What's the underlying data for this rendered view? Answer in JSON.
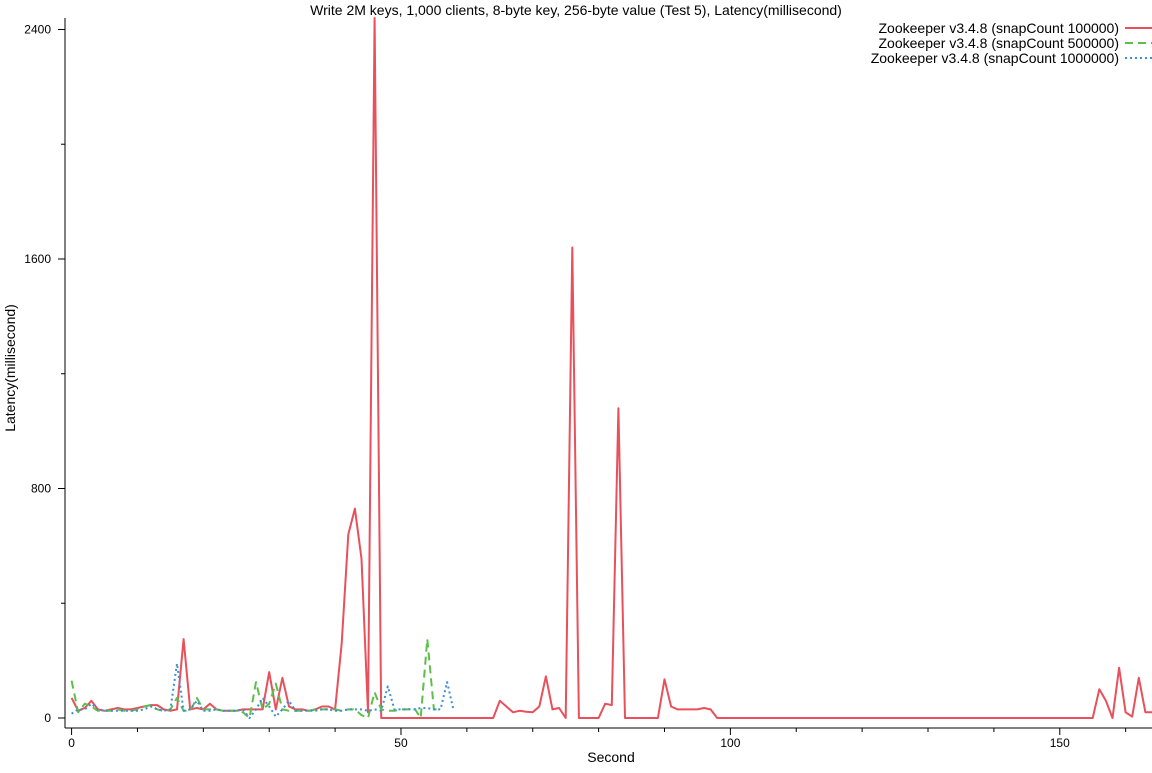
{
  "chart_data": {
    "type": "line",
    "title": "Write 2M keys, 1,000 clients, 8-byte key, 256-byte value (Test 5), Latency(millisecond)",
    "xlabel": "Second",
    "ylabel": "Latency(millisecond)",
    "xlim": [
      -1,
      164
    ],
    "ylim": [
      0,
      2440
    ],
    "x_major_ticks": [
      0,
      50,
      100,
      150
    ],
    "x_minor_ticks": [
      10,
      20,
      30,
      40,
      60,
      70,
      80,
      90,
      110,
      120,
      130,
      140,
      160
    ],
    "y_major_ticks": [
      0,
      800,
      1600,
      2400
    ],
    "y_minor_ticks": [
      400,
      1200,
      2000
    ],
    "grid": false,
    "legend_position": "top-right",
    "series": [
      {
        "name": "Zookeeper v3.4.8 (snapCount 100000)",
        "color": "#e8505b",
        "dash": "solid",
        "x": [
          0,
          1,
          2,
          3,
          4,
          5,
          6,
          7,
          8,
          9,
          10,
          11,
          12,
          13,
          14,
          15,
          16,
          17,
          18,
          19,
          20,
          21,
          22,
          23,
          24,
          25,
          26,
          27,
          28,
          29,
          30,
          31,
          32,
          33,
          34,
          35,
          36,
          37,
          38,
          39,
          40,
          41,
          42,
          43,
          44,
          45,
          46,
          47,
          48,
          49,
          50,
          51,
          52,
          53,
          54,
          55,
          56,
          57,
          58,
          59,
          60,
          61,
          62,
          63,
          64,
          65,
          66,
          67,
          68,
          69,
          70,
          71,
          72,
          73,
          74,
          75,
          76,
          77,
          78,
          79,
          80,
          81,
          82,
          83,
          84,
          85,
          86,
          87,
          88,
          89,
          90,
          91,
          92,
          93,
          94,
          95,
          96,
          97,
          98,
          100,
          110,
          120,
          130,
          140,
          150,
          155,
          156,
          157,
          158,
          159,
          160,
          161,
          162,
          163,
          164
        ],
        "values": [
          70,
          25,
          35,
          60,
          30,
          25,
          30,
          35,
          30,
          30,
          35,
          40,
          45,
          45,
          30,
          25,
          30,
          275,
          30,
          35,
          30,
          50,
          30,
          25,
          25,
          25,
          30,
          30,
          30,
          30,
          160,
          30,
          140,
          40,
          30,
          30,
          25,
          30,
          40,
          40,
          30,
          260,
          640,
          730,
          555,
          20,
          2440,
          0,
          0,
          0,
          0,
          0,
          0,
          0,
          0,
          0,
          0,
          0,
          0,
          0,
          0,
          0,
          0,
          0,
          0,
          60,
          40,
          20,
          25,
          22,
          20,
          40,
          145,
          30,
          35,
          0,
          1640,
          0,
          0,
          0,
          0,
          50,
          45,
          1080,
          0,
          0,
          0,
          0,
          0,
          0,
          135,
          40,
          30,
          30,
          30,
          30,
          35,
          30,
          0,
          0,
          0,
          0,
          0,
          0,
          0,
          0,
          100,
          60,
          0,
          175,
          20,
          5,
          140,
          20,
          20
        ]
      },
      {
        "name": "Zookeeper v3.4.8 (snapCount 500000)",
        "color": "#5cbf4a",
        "dash": "dashed",
        "x": [
          0,
          1,
          2,
          3,
          4,
          5,
          6,
          7,
          8,
          9,
          10,
          11,
          12,
          13,
          14,
          15,
          16,
          17,
          18,
          19,
          20,
          21,
          22,
          23,
          24,
          25,
          26,
          27,
          28,
          29,
          30,
          31,
          32,
          33,
          34,
          35,
          36,
          37,
          38,
          39,
          40,
          41,
          42,
          43,
          44,
          45,
          46,
          47,
          48,
          49,
          50,
          51,
          52,
          53,
          54,
          55,
          56
        ],
        "values": [
          130,
          20,
          50,
          40,
          25,
          25,
          25,
          30,
          25,
          25,
          30,
          40,
          45,
          30,
          25,
          30,
          70,
          25,
          25,
          70,
          30,
          30,
          30,
          25,
          25,
          25,
          20,
          0,
          125,
          30,
          50,
          120,
          30,
          25,
          25,
          25,
          25,
          30,
          30,
          30,
          30,
          25,
          30,
          30,
          10,
          0,
          90,
          30,
          25,
          25,
          30,
          30,
          35,
          0,
          275,
          30,
          30
        ]
      },
      {
        "name": "Zookeeper v3.4.8 (snapCount 1000000)",
        "color": "#3a8fd6",
        "dash": "dotted",
        "x": [
          0,
          1,
          2,
          3,
          4,
          5,
          6,
          7,
          8,
          9,
          10,
          11,
          12,
          13,
          14,
          15,
          16,
          17,
          18,
          19,
          20,
          21,
          22,
          23,
          24,
          25,
          26,
          27,
          28,
          29,
          30,
          31,
          32,
          33,
          34,
          35,
          36,
          37,
          38,
          39,
          40,
          41,
          42,
          43,
          44,
          45,
          46,
          47,
          48,
          49,
          50,
          51,
          52,
          53,
          54,
          55,
          56,
          57,
          58
        ],
        "values": [
          15,
          30,
          30,
          50,
          30,
          25,
          25,
          25,
          25,
          25,
          25,
          30,
          40,
          30,
          25,
          30,
          190,
          25,
          30,
          60,
          25,
          25,
          30,
          25,
          25,
          25,
          30,
          0,
          30,
          70,
          40,
          5,
          30,
          60,
          25,
          25,
          25,
          25,
          30,
          30,
          25,
          25,
          30,
          30,
          30,
          25,
          30,
          25,
          110,
          30,
          30,
          30,
          30,
          35,
          35,
          30,
          30,
          125,
          25
        ]
      }
    ]
  }
}
